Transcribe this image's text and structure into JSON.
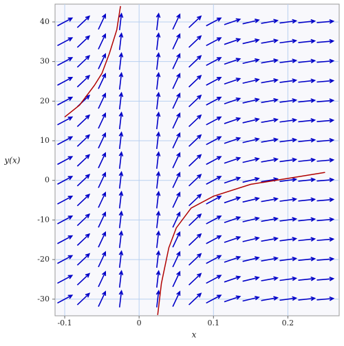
{
  "chart_data": {
    "type": "direction-field",
    "x_label": "x",
    "y_label": "y(x)",
    "xlim": [
      -0.113,
      0.269
    ],
    "ylim": [
      -34.2,
      44.5
    ],
    "xticks": [
      -0.1,
      0,
      0.1,
      0.2
    ],
    "yticks": [
      -30,
      -20,
      -10,
      0,
      10,
      20,
      30,
      40
    ],
    "grid": true,
    "field": {
      "color": "#0000c8",
      "x": [
        -0.1,
        -0.075,
        -0.05,
        -0.025,
        0,
        0.025,
        0.05,
        0.075,
        0.1,
        0.125,
        0.15,
        0.175,
        0.2,
        0.225,
        0.25
      ],
      "y": [
        -30,
        -25,
        -20,
        -15,
        -10,
        -5,
        0,
        5,
        10,
        15,
        20,
        25,
        30,
        35,
        40
      ],
      "slopes": [
        100,
        178,
        400,
        1600,
        null,
        1600,
        400,
        178,
        100,
        64,
        44,
        33,
        25,
        20,
        16
      ]
    },
    "series": [
      {
        "color": "#b00000",
        "x": [
          -0.1,
          -0.08,
          -0.06,
          -0.05,
          -0.04,
          -0.03,
          -0.025
        ],
        "values": [
          16,
          19,
          24,
          27,
          32,
          38,
          44
        ]
      },
      {
        "color": "#b00000",
        "x": [
          0.025,
          0.03,
          0.04,
          0.05,
          0.07,
          0.1,
          0.15,
          0.2,
          0.25
        ],
        "values": [
          -34,
          -26,
          -17,
          -12,
          -7,
          -4,
          -1,
          0.5,
          2
        ]
      }
    ]
  }
}
